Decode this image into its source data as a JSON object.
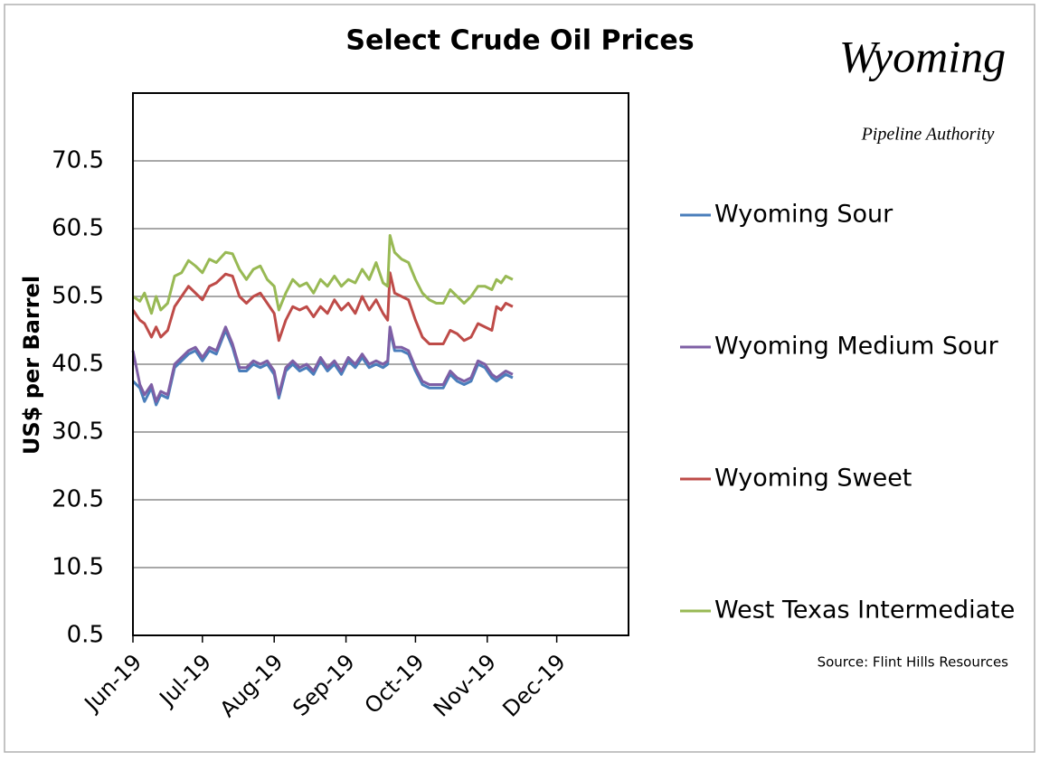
{
  "chart_data": {
    "type": "line",
    "title": "Select Crude Oil Prices",
    "y_label": "US$ per Barrel",
    "source": "Source:  Flint Hills Resources",
    "logo": {
      "name": "Wyoming",
      "tagline": "Pipeline Authority"
    },
    "xlim": [
      0,
      214
    ],
    "xticks": [
      {
        "value": 0,
        "label": "Jun-19"
      },
      {
        "value": 30,
        "label": "Jul-19"
      },
      {
        "value": 61,
        "label": "Aug-19"
      },
      {
        "value": 92,
        "label": "Sep-19"
      },
      {
        "value": 122,
        "label": "Oct-19"
      },
      {
        "value": 153,
        "label": "Nov-19"
      },
      {
        "value": 183,
        "label": "Dec-19"
      }
    ],
    "ylim": [
      0.5,
      80.5
    ],
    "yticks": [
      0.5,
      10.5,
      20.5,
      30.5,
      40.5,
      50.5,
      60.5,
      70.5
    ],
    "grid": true,
    "legend": "right",
    "x": [
      0,
      3,
      5,
      8,
      10,
      12,
      15,
      18,
      21,
      24,
      27,
      30,
      33,
      36,
      40,
      43,
      46,
      49,
      52,
      55,
      58,
      61,
      63,
      66,
      69,
      72,
      75,
      78,
      81,
      84,
      87,
      90,
      93,
      96,
      99,
      102,
      105,
      108,
      110,
      111,
      113,
      116,
      119,
      122,
      125,
      128,
      131,
      134,
      137,
      140,
      143,
      146,
      149,
      152,
      155,
      157,
      159,
      161,
      164
    ],
    "series": [
      {
        "name": "Wyoming Sour",
        "color": "#4a7ebb",
        "values": [
          38,
          37,
          35,
          37,
          34.5,
          36,
          35.5,
          40,
          41,
          42,
          42.5,
          41,
          42.5,
          42,
          45.5,
          43,
          39.5,
          39.5,
          40.5,
          40,
          40.5,
          39,
          35.5,
          39.5,
          40.5,
          39.5,
          40,
          39,
          41,
          39.5,
          40.5,
          39,
          41,
          40,
          41.5,
          40,
          40.5,
          40,
          40.5,
          45.5,
          42.5,
          42.5,
          42,
          39.5,
          37.5,
          37,
          37,
          37,
          39,
          38,
          37.5,
          38,
          40.5,
          40,
          38.5,
          38,
          38.5,
          39,
          38.5
        ]
      },
      {
        "name": "Wyoming Medium Sour",
        "color": "#7e5fa5",
        "values": [
          42.5,
          37.5,
          36,
          37.5,
          35,
          36.5,
          36,
          40.5,
          41.5,
          42.5,
          43,
          41.5,
          43,
          42.5,
          46,
          43.5,
          40,
          40,
          41,
          40.5,
          41,
          39.5,
          36,
          40,
          41,
          40,
          40.5,
          39.5,
          41.5,
          40,
          41,
          39.5,
          41.5,
          40.5,
          42,
          40.5,
          41,
          40.5,
          41,
          46,
          43,
          43,
          42.5,
          40,
          38,
          37.5,
          37.5,
          37.5,
          39.5,
          38.5,
          38,
          38.5,
          41,
          40.5,
          39,
          38.5,
          39,
          39.5,
          39
        ]
      },
      {
        "name": "Wyoming Sweet",
        "color": "#be4b48",
        "values": [
          48.5,
          47,
          46.5,
          44.5,
          46,
          44.5,
          45.5,
          49,
          50.5,
          52,
          51,
          50,
          52,
          52.5,
          53.8,
          53.5,
          50.5,
          49.5,
          50.5,
          51,
          49.5,
          48,
          44,
          47,
          49,
          48.5,
          49,
          47.5,
          49,
          48,
          50,
          48.5,
          49.5,
          48,
          50.5,
          48.5,
          50,
          48,
          47,
          54,
          51,
          50.5,
          50,
          47,
          44.5,
          43.5,
          43.5,
          43.5,
          45.5,
          45,
          44,
          44.5,
          46.5,
          46,
          45.5,
          49,
          48.5,
          49.5,
          49
        ]
      },
      {
        "name": "West Texas Intermediate",
        "color": "#98b954",
        "values": [
          50.5,
          49.8,
          51,
          48,
          50.5,
          48.5,
          49.5,
          53.5,
          54,
          55.8,
          55,
          54,
          56,
          55.5,
          57,
          56.8,
          54.5,
          53,
          54.5,
          55,
          53,
          52,
          48.5,
          51,
          53,
          52,
          52.5,
          51,
          53,
          52,
          53.5,
          52,
          53,
          52.5,
          54.5,
          53,
          55.5,
          52.5,
          52,
          59.5,
          57,
          56,
          55.5,
          53,
          51,
          50,
          49.5,
          49.5,
          51.5,
          50.5,
          49.5,
          50.5,
          52,
          52,
          51.5,
          53,
          52.5,
          53.5,
          53
        ]
      }
    ]
  }
}
